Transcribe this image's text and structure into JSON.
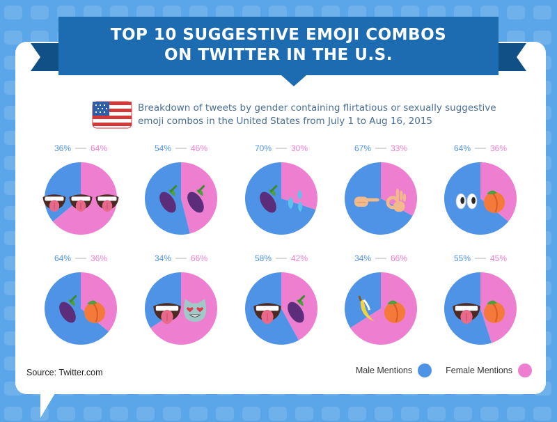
{
  "title_line1": "TOP 10 SUGGESTIVE EMOJI COMBOS",
  "title_line2": "ON TWITTER IN THE U.S.",
  "subtitle_line1": "Breakdown of tweets by gender containing flirtatious or sexually suggestive",
  "subtitle_line2": "emoji combos in the United States from July 1 to Aug 16, 2015",
  "source": "Source: Twitter.com",
  "colors": {
    "male": "#4f93e6",
    "female": "#ee7fd0",
    "background": "#5aa6e8",
    "banner": "#1d6bb0",
    "banner_dark": "#114f87"
  },
  "legend": {
    "male_label": "Male Mentions",
    "female_label": "Female Mentions"
  },
  "chart_data": [
    {
      "type": "pie",
      "slices": [
        {
          "label": "Male",
          "value": 36
        },
        {
          "label": "Female",
          "value": 64
        }
      ],
      "male_label": "36%",
      "female_label": "64%",
      "emoji": [
        "tongue-face-icon",
        "tongue-face-icon",
        "tongue-face-icon"
      ]
    },
    {
      "type": "pie",
      "slices": [
        {
          "label": "Male",
          "value": 54
        },
        {
          "label": "Female",
          "value": 46
        }
      ],
      "male_label": "54%",
      "female_label": "46%",
      "emoji": [
        "eggplant-icon",
        "eggplant-icon"
      ]
    },
    {
      "type": "pie",
      "slices": [
        {
          "label": "Male",
          "value": 70
        },
        {
          "label": "Female",
          "value": 30
        }
      ],
      "male_label": "70%",
      "female_label": "30%",
      "emoji": [
        "eggplant-icon",
        "sweat-droplets-icon"
      ]
    },
    {
      "type": "pie",
      "slices": [
        {
          "label": "Male",
          "value": 67
        },
        {
          "label": "Female",
          "value": 33
        }
      ],
      "male_label": "67%",
      "female_label": "33%",
      "emoji": [
        "pointing-hand-icon",
        "ok-hand-icon"
      ]
    },
    {
      "type": "pie",
      "slices": [
        {
          "label": "Male",
          "value": 64
        },
        {
          "label": "Female",
          "value": 36
        }
      ],
      "male_label": "64%",
      "female_label": "36%",
      "emoji": [
        "eyes-icon",
        "peach-icon"
      ]
    },
    {
      "type": "pie",
      "slices": [
        {
          "label": "Male",
          "value": 64
        },
        {
          "label": "Female",
          "value": 36
        }
      ],
      "male_label": "64%",
      "female_label": "36%",
      "emoji": [
        "eggplant-icon",
        "peach-icon"
      ]
    },
    {
      "type": "pie",
      "slices": [
        {
          "label": "Male",
          "value": 34
        },
        {
          "label": "Female",
          "value": 66
        }
      ],
      "male_label": "34%",
      "female_label": "66%",
      "emoji": [
        "tongue-face-icon",
        "heart-eyes-cat-icon"
      ]
    },
    {
      "type": "pie",
      "slices": [
        {
          "label": "Male",
          "value": 58
        },
        {
          "label": "Female",
          "value": 42
        }
      ],
      "male_label": "58%",
      "female_label": "42%",
      "emoji": [
        "tongue-face-icon",
        "eggplant-icon"
      ]
    },
    {
      "type": "pie",
      "slices": [
        {
          "label": "Male",
          "value": 34
        },
        {
          "label": "Female",
          "value": 66
        }
      ],
      "male_label": "34%",
      "female_label": "66%",
      "emoji": [
        "banana-icon",
        "peach-icon"
      ]
    },
    {
      "type": "pie",
      "slices": [
        {
          "label": "Male",
          "value": 55
        },
        {
          "label": "Female",
          "value": 45
        }
      ],
      "male_label": "55%",
      "female_label": "45%",
      "emoji": [
        "tongue-face-icon",
        "peach-icon"
      ]
    }
  ]
}
